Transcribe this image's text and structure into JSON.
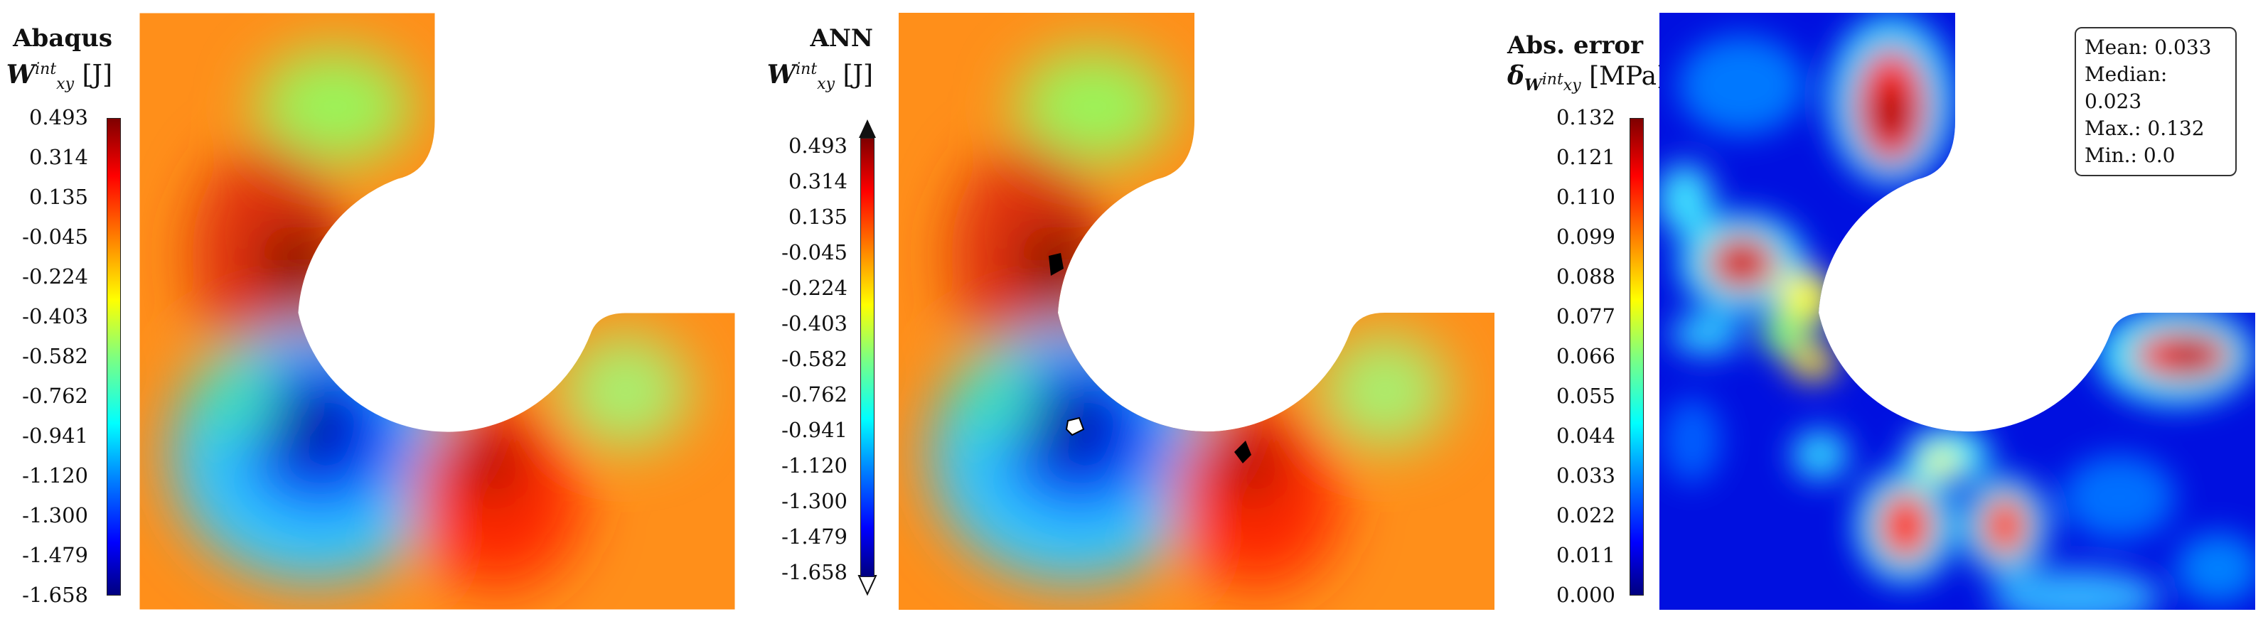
{
  "panels": [
    {
      "title": "Abaqus",
      "quantity_symbol": "W",
      "quantity_sup": "int",
      "quantity_sub": "xy",
      "quantity_unit": "[J]",
      "ticks": [
        "0.493",
        "0.314",
        "0.135",
        "-0.045",
        "-0.224",
        "-0.403",
        "-0.582",
        "-0.762",
        "-0.941",
        "-1.120",
        "-1.300",
        "-1.479",
        "-1.658"
      ]
    },
    {
      "title": "ANN",
      "quantity_symbol": "W",
      "quantity_sup": "int",
      "quantity_sub": "xy",
      "quantity_unit": "[J]",
      "ticks": [
        "0.493",
        "0.314",
        "0.135",
        "-0.045",
        "-0.224",
        "-0.403",
        "-0.582",
        "-0.762",
        "-0.941",
        "-1.120",
        "-1.300",
        "-1.479",
        "-1.658"
      ]
    },
    {
      "title": "Abs. error",
      "quantity_symbol": "δ",
      "quantity_sub_symbol": "W",
      "quantity_sup": "int",
      "quantity_sub": "xy",
      "quantity_unit": "[MPa]",
      "ticks": [
        "0.132",
        "0.121",
        "0.110",
        "0.099",
        "0.088",
        "0.077",
        "0.066",
        "0.055",
        "0.044",
        "0.033",
        "0.022",
        "0.011",
        "0.000"
      ]
    }
  ],
  "stats": {
    "mean": "Mean: 0.033",
    "median": "Median: 0.023",
    "max": "Max.: 0.132",
    "min": "Min.: 0.0"
  },
  "colors": {
    "colormap": [
      "#00007f",
      "#0000ff",
      "#007fff",
      "#00ffff",
      "#7fff7f",
      "#ffff00",
      "#ff7f00",
      "#ff0000",
      "#7f0000"
    ]
  }
}
